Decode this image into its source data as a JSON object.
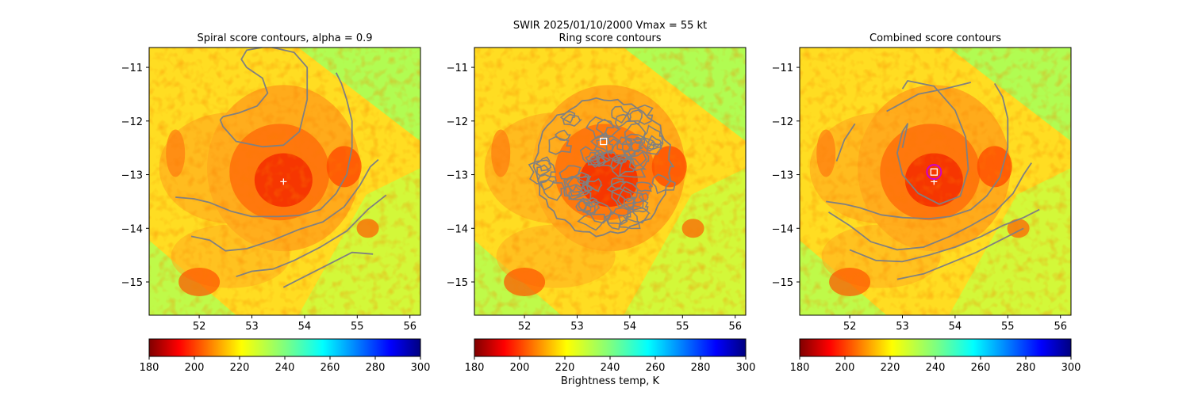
{
  "suptitle": {
    "line1": "SWIR  2025/01/10/2000    Vmax = 55 kt"
  },
  "colorbar": {
    "label": "Brightness temp, K",
    "ticks": [
      180,
      200,
      220,
      240,
      260,
      280,
      300
    ],
    "range": [
      180,
      300
    ],
    "colormap": "jet_r"
  },
  "chart_data": [
    {
      "type": "heatmap",
      "title": "Spiral score contours, alpha =  0.9",
      "x_ticks": [
        52,
        53,
        54,
        55,
        56
      ],
      "y_ticks": [
        -11,
        -12,
        -13,
        -14,
        -15
      ],
      "xlim": [
        51.05,
        56.2
      ],
      "ylim": [
        -15.62,
        -10.63
      ],
      "center_marker": {
        "symbol": "+",
        "lon": 53.6,
        "lat": -13.13
      },
      "contour_lines": [
        {
          "lon": [
            51.55,
            51.9,
            52.2,
            52.6,
            53.0,
            53.5,
            53.9,
            54.3,
            54.6,
            54.8,
            54.9,
            54.9,
            54.8,
            54.7,
            54.6
          ],
          "lat": [
            -13.42,
            -13.45,
            -13.52,
            -13.68,
            -13.78,
            -13.78,
            -13.76,
            -13.65,
            -13.35,
            -13.0,
            -12.5,
            -12.0,
            -11.6,
            -11.3,
            -11.1
          ]
        },
        {
          "lon": [
            52.45,
            52.75,
            53.1,
            53.3,
            53.2,
            52.9,
            52.8,
            52.9,
            53.3,
            53.8,
            54.05,
            54.05,
            53.9,
            53.6,
            53.2,
            52.7,
            52.45,
            52.4,
            52.45
          ],
          "lat": [
            -11.92,
            -11.85,
            -11.72,
            -11.48,
            -11.2,
            -11.0,
            -10.85,
            -10.68,
            -10.61,
            -10.72,
            -11.0,
            -11.6,
            -12.2,
            -12.45,
            -12.48,
            -12.38,
            -12.1,
            -11.98,
            -11.92
          ]
        },
        {
          "lon": [
            51.85,
            52.2,
            52.5,
            52.9,
            53.4,
            53.9,
            54.35,
            54.75,
            55.05,
            55.25,
            55.4
          ],
          "lat": [
            -14.15,
            -14.22,
            -14.42,
            -14.38,
            -14.22,
            -14.02,
            -13.88,
            -13.6,
            -13.2,
            -12.85,
            -12.72
          ]
        },
        {
          "lon": [
            52.7,
            53.0,
            53.4,
            53.8,
            54.3,
            54.8,
            55.2,
            55.55
          ],
          "lat": [
            -14.9,
            -14.8,
            -14.76,
            -14.6,
            -14.35,
            -14.05,
            -13.65,
            -13.38
          ]
        },
        {
          "lon": [
            53.6,
            54.0,
            54.5,
            54.9,
            55.3
          ],
          "lat": [
            -15.1,
            -14.9,
            -14.65,
            -14.45,
            -14.48
          ]
        }
      ]
    },
    {
      "type": "heatmap",
      "title": "Ring score contours",
      "x_ticks": [
        52,
        53,
        54,
        55,
        56
      ],
      "y_ticks": [
        -11,
        -12,
        -13,
        -14,
        -15
      ],
      "xlim": [
        51.05,
        56.2
      ],
      "ylim": [
        -15.62,
        -10.63
      ],
      "center_marker": {
        "symbol": "square",
        "lon": 53.5,
        "lat": -12.38
      },
      "ring_region": {
        "center_lon": 53.5,
        "center_lat": -12.85,
        "radius_deg": 1.3
      }
    },
    {
      "type": "heatmap",
      "title": "Combined score contours",
      "x_ticks": [
        52,
        53,
        54,
        55,
        56
      ],
      "y_ticks": [
        -11,
        -12,
        -13,
        -14,
        -15
      ],
      "xlim": [
        51.05,
        56.2
      ],
      "ylim": [
        -15.62,
        -10.63
      ],
      "center_marker": {
        "symbol": "+",
        "lon": 53.6,
        "lat": -13.13
      },
      "square_marker": {
        "lon": 53.6,
        "lat": -12.95
      },
      "circle_marker": {
        "lon": 53.6,
        "lat": -12.95,
        "color": "#cc00cc"
      },
      "contour_lines": [
        {
          "lon": [
            51.55,
            51.9,
            52.2,
            52.6,
            53.0,
            53.5,
            53.9,
            54.3,
            54.6,
            54.85,
            55.0,
            55.0,
            54.9,
            54.75
          ],
          "lat": [
            -13.5,
            -13.55,
            -13.62,
            -13.75,
            -13.8,
            -13.82,
            -13.78,
            -13.65,
            -13.4,
            -13.05,
            -12.5,
            -11.95,
            -11.55,
            -11.3
          ]
        },
        {
          "lon": [
            53.0,
            53.1,
            53.0,
            52.9,
            53.0,
            53.3,
            53.7,
            54.1,
            54.25,
            54.2,
            54.0,
            53.6,
            53.1,
            53.0
          ],
          "lat": [
            -12.5,
            -12.05,
            -12.2,
            -12.6,
            -13.0,
            -13.35,
            -13.55,
            -13.4,
            -12.9,
            -12.3,
            -11.8,
            -11.35,
            -11.25,
            -11.4
          ]
        },
        {
          "lon": [
            52.7,
            53.3,
            53.8,
            54.3
          ],
          "lat": [
            -11.82,
            -11.5,
            -11.4,
            -11.28
          ]
        },
        {
          "lon": [
            51.75,
            51.9,
            52.1
          ],
          "lat": [
            -12.75,
            -12.35,
            -12.05
          ]
        },
        {
          "lon": [
            51.6,
            52.0,
            52.4,
            52.9,
            53.4,
            53.9,
            54.3,
            54.75,
            55.1,
            55.3,
            55.45
          ],
          "lat": [
            -13.7,
            -13.95,
            -14.25,
            -14.4,
            -14.35,
            -14.15,
            -13.95,
            -13.7,
            -13.35,
            -13.0,
            -12.78
          ]
        },
        {
          "lon": [
            52.0,
            52.5,
            53.0,
            53.5,
            54.0,
            54.5,
            54.9,
            55.3,
            55.6
          ],
          "lat": [
            -14.4,
            -14.6,
            -14.62,
            -14.5,
            -14.35,
            -14.15,
            -13.95,
            -13.8,
            -13.65
          ]
        },
        {
          "lon": [
            52.9,
            53.4,
            53.9,
            54.4,
            54.9,
            55.3
          ],
          "lat": [
            -14.95,
            -14.85,
            -14.65,
            -14.45,
            -14.2,
            -14.0
          ]
        }
      ]
    }
  ]
}
